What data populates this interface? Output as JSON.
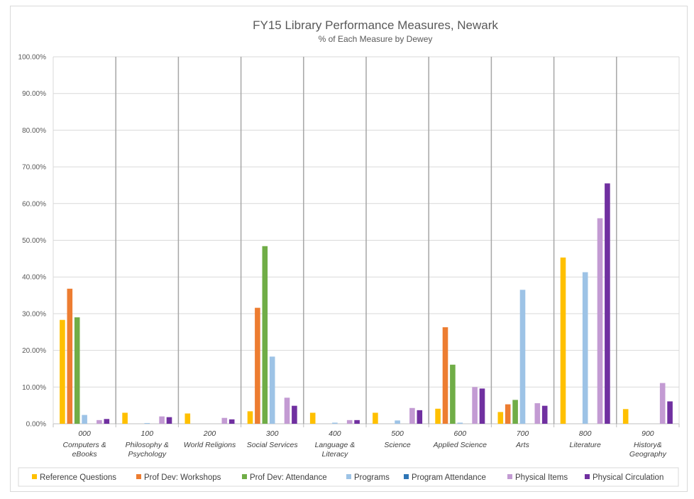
{
  "chart_data": {
    "type": "bar",
    "title": "FY15 Library Performance Measures, Newark",
    "subtitle": "% of Each Measure by Dewey",
    "ylim": [
      0,
      100
    ],
    "yticks": [
      "0.00%",
      "10.00%",
      "20.00%",
      "30.00%",
      "40.00%",
      "50.00%",
      "60.00%",
      "70.00%",
      "80.00%",
      "90.00%",
      "100.00%"
    ],
    "grid": true,
    "legend_position": "bottom",
    "categories": [
      {
        "code": "000",
        "name": [
          "Computers &",
          "eBooks"
        ]
      },
      {
        "code": "100",
        "name": [
          "Philosophy &",
          "Psychology"
        ]
      },
      {
        "code": "200",
        "name": [
          "World Religions"
        ]
      },
      {
        "code": "300",
        "name": [
          "Social Services"
        ]
      },
      {
        "code": "400",
        "name": [
          "Language &",
          "Literacy"
        ]
      },
      {
        "code": "500",
        "name": [
          "Science"
        ]
      },
      {
        "code": "600",
        "name": [
          "Applied Science"
        ]
      },
      {
        "code": "700",
        "name": [
          "Arts"
        ]
      },
      {
        "code": "800",
        "name": [
          "Literature"
        ]
      },
      {
        "code": "900",
        "name": [
          "History&",
          "Geography"
        ]
      }
    ],
    "series": [
      {
        "name": "Reference Questions",
        "color": "#FFC000",
        "values": [
          28.3,
          3.0,
          2.8,
          3.4,
          3.0,
          3.0,
          4.1,
          3.2,
          45.3,
          4.0
        ]
      },
      {
        "name": "Prof Dev: Workshops",
        "color": "#ED7D31",
        "values": [
          36.8,
          0,
          0,
          31.6,
          0,
          0,
          26.3,
          5.3,
          0,
          0
        ]
      },
      {
        "name": "Prof Dev: Attendance",
        "color": "#70AD47",
        "values": [
          29.0,
          0,
          0,
          48.4,
          0,
          0,
          16.1,
          6.5,
          0,
          0
        ]
      },
      {
        "name": "Programs",
        "color": "#9DC3E6",
        "values": [
          2.4,
          0.2,
          0,
          18.3,
          0.3,
          0.9,
          0.3,
          36.5,
          41.3,
          0
        ]
      },
      {
        "name": "Program Attendance",
        "color": "#2E75B6",
        "values": [
          0,
          0,
          0,
          0,
          0,
          0,
          0,
          0,
          0,
          0
        ]
      },
      {
        "name": "Physical Items",
        "color": "#C39BD3",
        "values": [
          1.0,
          2.0,
          1.6,
          7.1,
          1.0,
          4.3,
          10.0,
          5.6,
          56.0,
          11.1
        ]
      },
      {
        "name": "Physical Circulation",
        "color": "#7030A0",
        "values": [
          1.3,
          1.8,
          1.2,
          4.9,
          1.0,
          3.7,
          9.6,
          4.9,
          65.5,
          6.1
        ]
      }
    ]
  }
}
